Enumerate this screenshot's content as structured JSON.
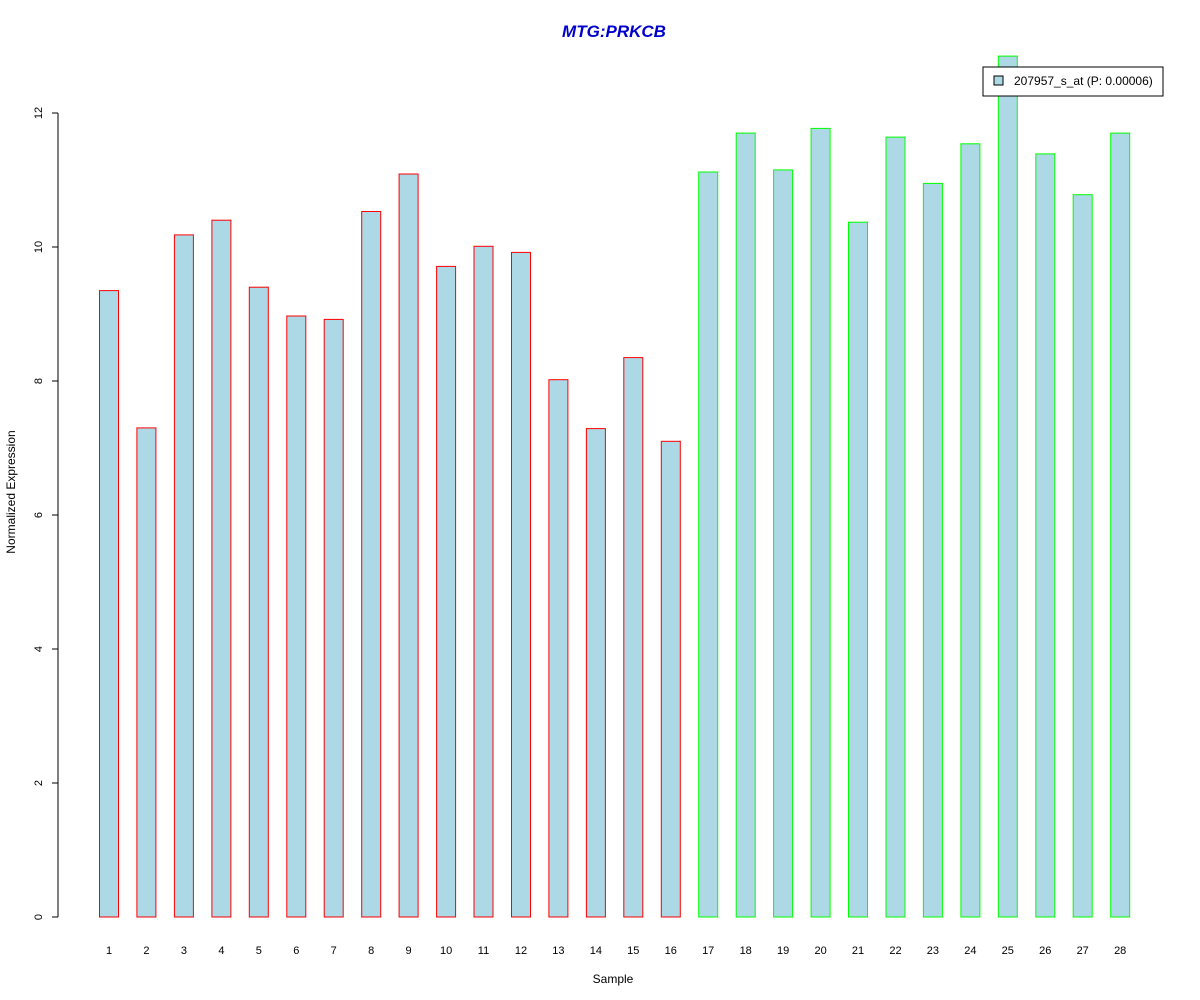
{
  "chart_data": {
    "type": "bar",
    "title": "MTG:PRKCB",
    "xlabel": "Sample",
    "ylabel": "Normalized Expression",
    "categories": [
      "1",
      "2",
      "3",
      "4",
      "5",
      "6",
      "7",
      "8",
      "9",
      "10",
      "11",
      "12",
      "13",
      "14",
      "15",
      "16",
      "17",
      "18",
      "19",
      "20",
      "21",
      "22",
      "23",
      "24",
      "25",
      "26",
      "27",
      "28"
    ],
    "values": [
      9.35,
      7.3,
      10.18,
      10.4,
      9.4,
      8.97,
      8.92,
      10.53,
      11.09,
      9.71,
      10.01,
      9.92,
      8.02,
      7.29,
      8.35,
      7.1,
      11.12,
      11.7,
      11.15,
      11.77,
      10.37,
      11.64,
      10.95,
      11.54,
      12.85,
      11.39,
      10.78,
      11.7
    ],
    "groups": [
      "red",
      "red",
      "red",
      "red",
      "red",
      "red",
      "red",
      "red",
      "red",
      "red",
      "red",
      "red",
      "red",
      "red",
      "red",
      "red",
      "green",
      "green",
      "green",
      "green",
      "green",
      "green",
      "green",
      "green",
      "green",
      "green",
      "green",
      "green"
    ],
    "yticks": [
      "0",
      "2",
      "4",
      "6",
      "8",
      "10",
      "12"
    ],
    "ylim": [
      0,
      12.85
    ],
    "grid": false,
    "legend": {
      "label": "207957_s_at (P: 0.00006)",
      "position": "top-right"
    },
    "colors": {
      "title": "#0000cc",
      "bar_fill": "#add8e6",
      "border_red": "#ff0000",
      "border_green": "#00ff00",
      "axis": "#000000"
    }
  }
}
